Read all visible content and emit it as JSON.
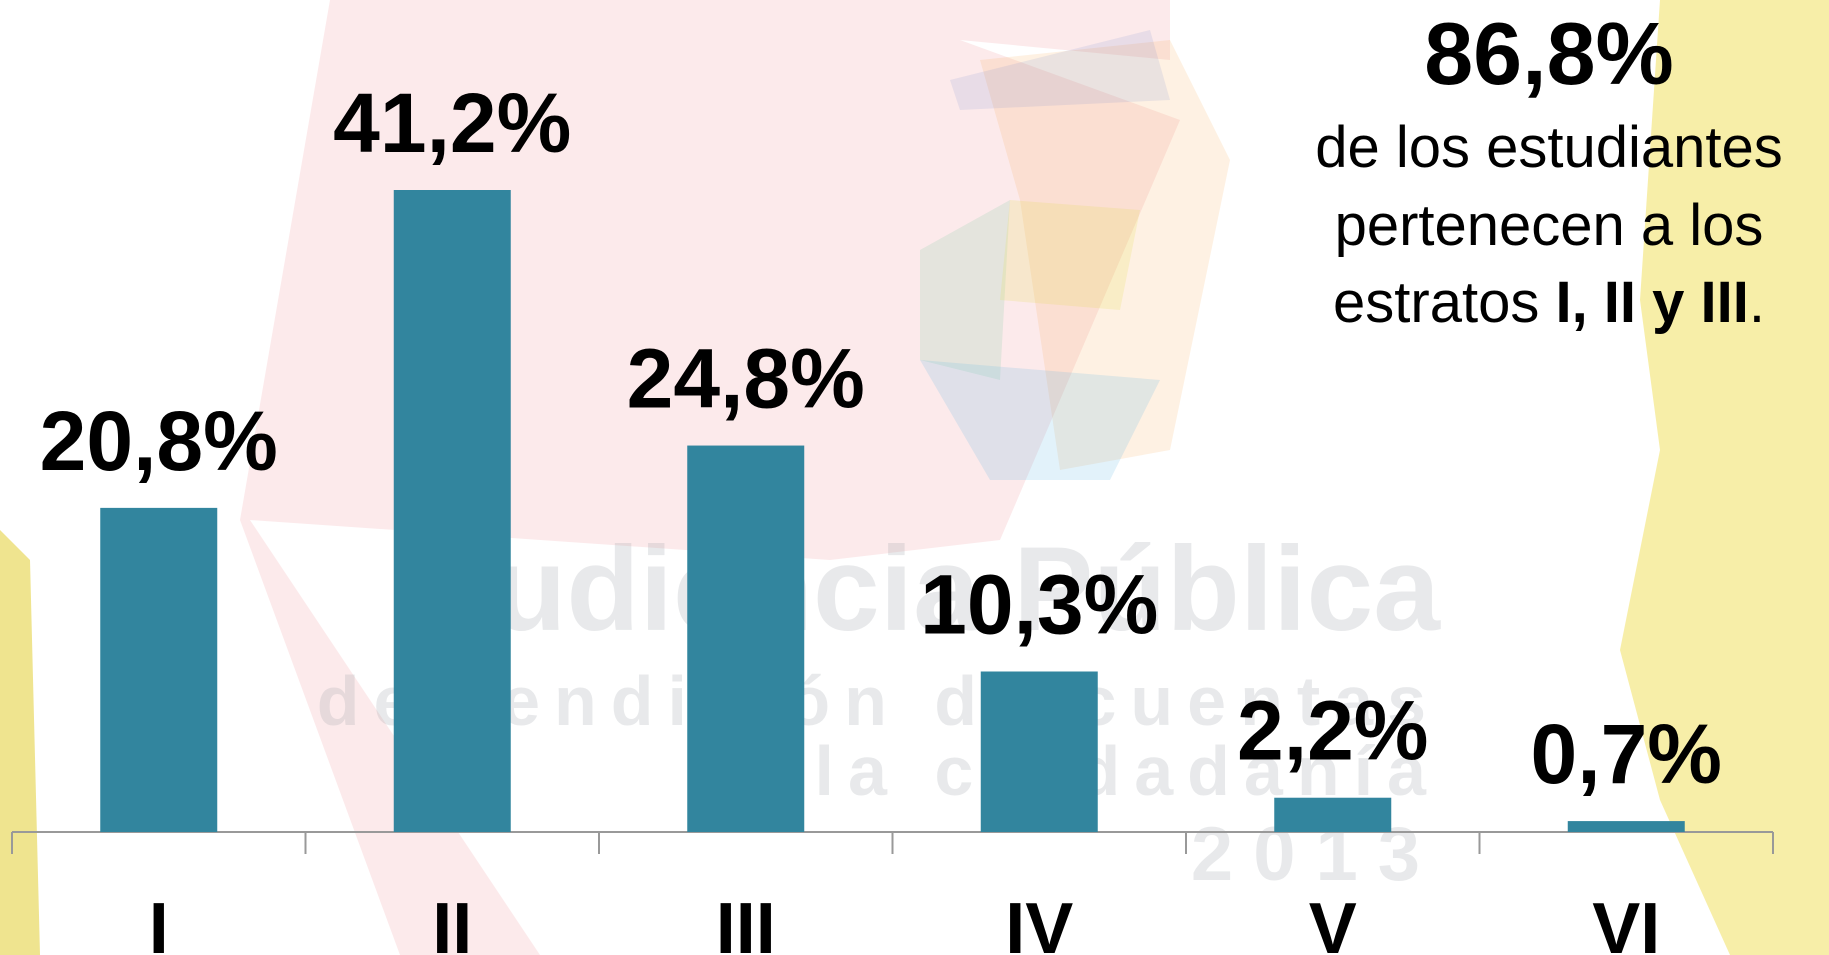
{
  "chart_data": {
    "type": "bar",
    "categories": [
      "I",
      "II",
      "III",
      "IV",
      "V",
      "VI"
    ],
    "values": [
      20.8,
      41.2,
      24.8,
      10.3,
      2.2,
      0.7
    ],
    "value_labels": [
      "20,8%",
      "41,2%",
      "24,8%",
      "10,3%",
      "2,2%",
      "0,7%"
    ],
    "color": "#32859e",
    "annotation": {
      "headline": "86,8%",
      "lines": [
        "de los estudiantes",
        "pertenecen a los"
      ],
      "last_line": [
        "estratos ",
        "I, II y III",
        "."
      ]
    },
    "watermark": [
      "Audiencia Pública",
      "de rendición de cuentas",
      "a la ciudadanía",
      "2013"
    ]
  }
}
